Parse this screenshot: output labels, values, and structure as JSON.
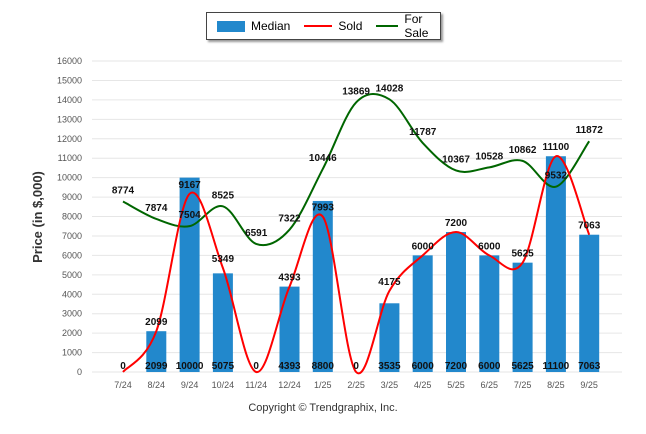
{
  "chart_data": {
    "type": "bar+line",
    "categories": [
      "7/24",
      "8/24",
      "9/24",
      "10/24",
      "11/24",
      "12/24",
      "1/25",
      "2/25",
      "3/25",
      "4/25",
      "5/25",
      "6/25",
      "7/25",
      "8/25",
      "9/25"
    ],
    "series": [
      {
        "name": "Median",
        "type": "bar",
        "color": "#2288cc",
        "values": [
          0,
          2099,
          10000,
          5075,
          0,
          4393,
          8800,
          0,
          3535,
          6000,
          7200,
          6000,
          5625,
          11100,
          7063
        ]
      },
      {
        "name": "Sold",
        "type": "line",
        "color": "#ff0000",
        "values": [
          0,
          2099,
          9167,
          5349,
          0,
          4393,
          7993,
          0,
          4175,
          6000,
          7200,
          6000,
          5625,
          11100,
          7063
        ]
      },
      {
        "name": "For Sale",
        "type": "line",
        "color": "#006600",
        "values": [
          8774,
          7874,
          7504,
          8525,
          6591,
          7322,
          10446,
          13869,
          14028,
          11787,
          10367,
          10528,
          10862,
          9532,
          11872
        ]
      }
    ],
    "ylabel": "Price (in $,000)",
    "xlabel": "",
    "ylim": [
      0,
      16000
    ],
    "yticks": [
      0,
      1000,
      2000,
      3000,
      4000,
      5000,
      6000,
      7000,
      8000,
      9000,
      10000,
      11000,
      12000,
      13000,
      14000,
      15000,
      16000
    ],
    "grid": true,
    "legend_position": "top-center"
  },
  "copyright": "Copyright © Trendgraphix, Inc."
}
